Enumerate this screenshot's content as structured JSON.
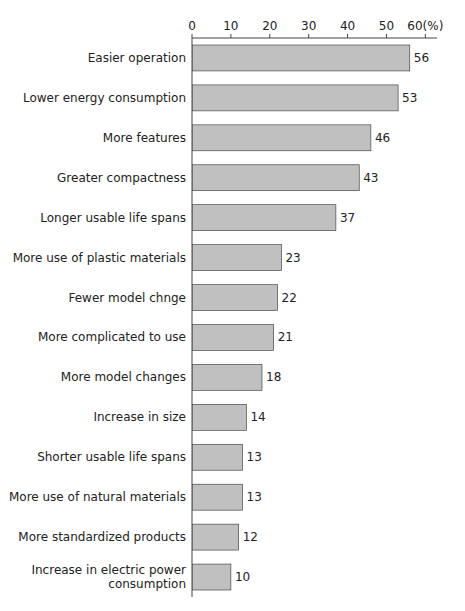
{
  "chart_data": {
    "type": "bar",
    "orientation": "horizontal",
    "categories": [
      "Easier operation",
      "Lower energy consumption",
      "More features",
      "Greater compactness",
      "Longer usable life spans",
      "More use of plastic materials",
      "Fewer model chnge",
      "More complicated to use",
      "More model changes",
      "Increase in size",
      "Shorter usable life spans",
      "More use of natural materials",
      "More standardized products",
      "Increase in electric power\nconsumption"
    ],
    "values": [
      56,
      53,
      46,
      43,
      37,
      23,
      22,
      21,
      18,
      14,
      13,
      13,
      12,
      10
    ],
    "color": "#c0c0c0",
    "xlim": [
      0,
      63
    ],
    "xticks": [
      0,
      10,
      20,
      30,
      40,
      50,
      {
        "value": 60,
        "label": "60(%)"
      }
    ],
    "grid": false,
    "data_labels": true
  }
}
